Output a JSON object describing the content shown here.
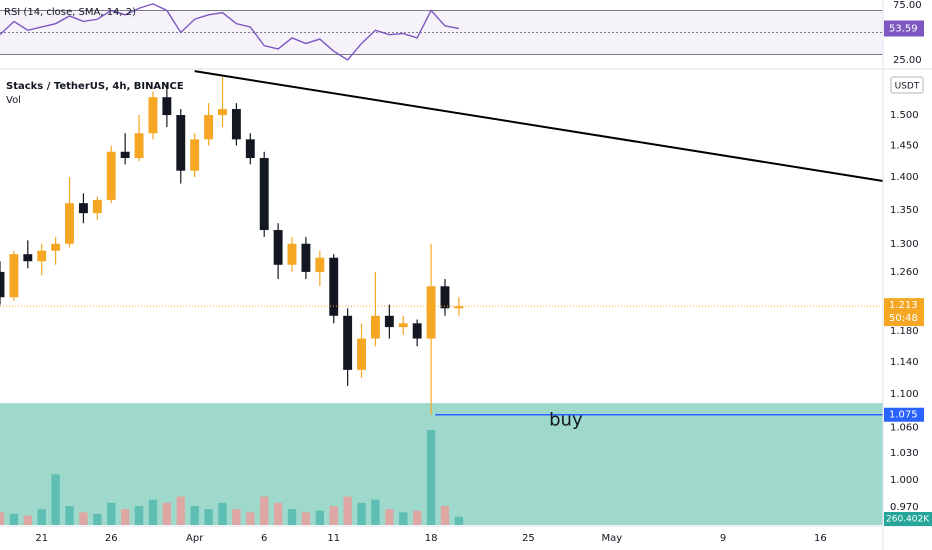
{
  "chart_data": {
    "type": "candlestick",
    "title": "Stacks / TetherUS, 4h, BINANCE",
    "subtitle": "Vol",
    "currency": "USDT",
    "log_scale": true,
    "x": [
      18,
      19,
      20,
      21,
      22,
      23,
      24,
      25,
      26,
      27,
      28,
      29,
      30,
      31,
      32,
      33,
      34,
      35,
      36,
      37,
      38,
      39,
      40,
      41,
      42,
      43,
      44,
      45,
      46,
      47,
      48,
      49,
      50,
      51
    ],
    "open": [
      1.26,
      1.225,
      1.285,
      1.275,
      1.29,
      1.3,
      1.36,
      1.345,
      1.365,
      1.44,
      1.43,
      1.47,
      1.53,
      1.5,
      1.41,
      1.46,
      1.5,
      1.51,
      1.46,
      1.43,
      1.32,
      1.27,
      1.3,
      1.26,
      1.28,
      1.2,
      1.13,
      1.17,
      1.2,
      1.185,
      1.19,
      1.17,
      1.24,
      1.21
    ],
    "high": [
      1.275,
      1.29,
      1.305,
      1.3,
      1.31,
      1.4,
      1.375,
      1.37,
      1.45,
      1.47,
      1.5,
      1.54,
      1.555,
      1.51,
      1.47,
      1.52,
      1.565,
      1.52,
      1.47,
      1.44,
      1.33,
      1.31,
      1.31,
      1.29,
      1.285,
      1.21,
      1.19,
      1.26,
      1.215,
      1.2,
      1.195,
      1.3,
      1.25,
      1.225
    ],
    "low": [
      1.215,
      1.22,
      1.265,
      1.255,
      1.27,
      1.295,
      1.33,
      1.335,
      1.36,
      1.42,
      1.425,
      1.46,
      1.48,
      1.39,
      1.4,
      1.45,
      1.48,
      1.45,
      1.42,
      1.31,
      1.25,
      1.26,
      1.25,
      1.24,
      1.19,
      1.11,
      1.12,
      1.16,
      1.17,
      1.175,
      1.16,
      1.075,
      1.2,
      1.2
    ],
    "close": [
      1.225,
      1.285,
      1.275,
      1.29,
      1.3,
      1.36,
      1.345,
      1.365,
      1.44,
      1.43,
      1.47,
      1.53,
      1.5,
      1.41,
      1.46,
      1.5,
      1.51,
      1.46,
      1.43,
      1.32,
      1.27,
      1.3,
      1.26,
      1.28,
      1.2,
      1.13,
      1.17,
      1.2,
      1.185,
      1.19,
      1.17,
      1.24,
      1.21,
      1.213
    ],
    "up_color": "#f5a623",
    "down_color": "#131722",
    "volume": {
      "values": [
        400000,
        350000,
        300000,
        500000,
        1600000,
        600000,
        400000,
        350000,
        700000,
        500000,
        600000,
        800000,
        700000,
        900000,
        600000,
        500000,
        700000,
        500000,
        400000,
        900000,
        700000,
        500000,
        400000,
        450000,
        600000,
        900000,
        700000,
        800000,
        500000,
        400000,
        450000,
        3000000,
        600000,
        260402
      ],
      "value_labels": [
        null,
        null,
        null,
        null,
        null,
        null,
        null,
        null,
        null,
        null,
        null,
        null,
        null,
        null,
        null,
        null,
        null,
        null,
        null,
        null,
        null,
        null,
        null,
        null,
        null,
        null,
        null,
        null,
        null,
        null,
        null,
        null,
        null,
        "260.402K"
      ],
      "up_color": "#4db6ac",
      "down_color": "#ef9a9a"
    },
    "xlim": [
      18,
      81.5
    ],
    "xticks": [
      21,
      26,
      {
        "value": 32,
        "label": "Apr"
      },
      {
        "value": 37,
        "label": "6"
      },
      {
        "value": 42,
        "label": "11"
      },
      {
        "value": 49,
        "label": "18"
      },
      {
        "value": 56,
        "label": "25"
      },
      {
        "value": 62,
        "label": "May"
      },
      {
        "value": 70,
        "label": "9"
      },
      {
        "value": 77,
        "label": "16"
      }
    ],
    "ylim": [
      0.951,
      1.577
    ],
    "yticks": [
      {
        "value": 1.5,
        "label": "1.500"
      },
      {
        "value": 1.45,
        "label": "1.450"
      },
      {
        "value": 1.4,
        "label": "1.400"
      },
      {
        "value": 1.35,
        "label": "1.350"
      },
      {
        "value": 1.3,
        "label": "1.300"
      },
      {
        "value": 1.26,
        "label": "1.260"
      },
      {
        "value": 1.18,
        "label": "1.180"
      },
      {
        "value": 1.14,
        "label": "1.140"
      },
      {
        "value": 1.1,
        "label": "1.100"
      },
      {
        "value": 1.06,
        "label": "1.060"
      },
      {
        "value": 1.03,
        "label": "1.030"
      },
      {
        "value": 1,
        "label": "1.000"
      },
      {
        "value": 0.97,
        "label": "0.970"
      }
    ],
    "last_price": 1.213,
    "countdown": "50:48",
    "trendline": {
      "x": [
        32,
        81.5
      ],
      "y": [
        1.575,
        1.394
      ],
      "color": "#000000"
    },
    "buy_level": {
      "value": 1.075,
      "label": "buy",
      "x": 49.3,
      "color": "#2962ff"
    },
    "zone": {
      "top": 1.089,
      "color": "#9ed9cc"
    },
    "rsi": {
      "title": "RSI (14, close, SMA, 14, 2)",
      "values": [
        48,
        60,
        52,
        55,
        58,
        65,
        60,
        62,
        70,
        66,
        72,
        76,
        70,
        50,
        62,
        66,
        68,
        58,
        55,
        38,
        35,
        45,
        40,
        44,
        33,
        25,
        40,
        52,
        48,
        49,
        45,
        70,
        56,
        53.59
      ],
      "last": 53.59,
      "ylim": [
        17.7,
        79.5
      ],
      "yticks": [
        {
          "value": 75,
          "label": "75.00"
        },
        {
          "value": 25,
          "label": "25.00"
        }
      ],
      "bands": [
        70,
        30
      ],
      "color": "#7e57c2"
    }
  }
}
